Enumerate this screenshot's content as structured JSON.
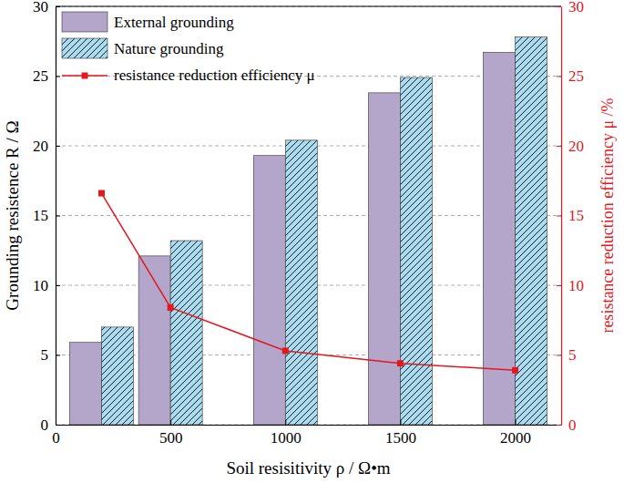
{
  "chart_data": {
    "type": "bar",
    "xlabel": "Soil resisitivity ρ / Ω•m",
    "ylabel": "Grounding resistence R / Ω",
    "y2label": "resistance reduction efficiency μ /%",
    "x": [
      200,
      500,
      1000,
      1500,
      2000
    ],
    "series": [
      {
        "name": "External grounding",
        "color": "#b3a6ca",
        "values": [
          5.9,
          12.1,
          19.3,
          23.8,
          26.7
        ]
      },
      {
        "name": "Nature grounding",
        "color": "#a9dcf0",
        "values": [
          7.0,
          13.2,
          20.4,
          24.9,
          27.8
        ]
      },
      {
        "name": "resistance reduction efficiency μ",
        "color": "#e3171f",
        "type": "line",
        "axis": "y2",
        "marker": "square",
        "values": [
          16.6,
          8.4,
          5.3,
          4.4,
          3.9
        ]
      }
    ],
    "xlim": [
      0,
      2200
    ],
    "xticks": [
      0,
      500,
      1000,
      1500,
      2000
    ],
    "ylim": [
      0,
      30
    ],
    "yticks": [
      0,
      5,
      10,
      15,
      20,
      25,
      30
    ],
    "y2lim": [
      0,
      30
    ],
    "y2ticks": [
      0,
      5,
      10,
      15,
      20,
      25,
      30
    ],
    "grid": true,
    "legend": "upper left"
  }
}
